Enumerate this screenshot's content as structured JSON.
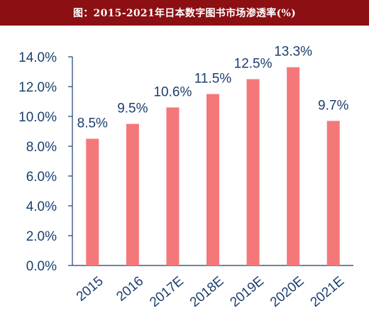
{
  "header": {
    "title": "图：2015-2021年日本数字图书市场渗透率(%)"
  },
  "colors": {
    "header_bg": "#8b0f13",
    "bar": "#f4787a",
    "text": "#1b3f6e",
    "axis": "#1b3f6e"
  },
  "chart_data": {
    "type": "bar",
    "title": "图：2015-2021年日本数字图书市场渗透率(%)",
    "categories": [
      "2015",
      "2016",
      "2017E",
      "2018E",
      "2019E",
      "2020E",
      "2021E"
    ],
    "values": [
      8.5,
      9.5,
      10.6,
      11.5,
      12.5,
      13.3,
      9.7
    ],
    "data_labels": [
      "8.5%",
      "9.5%",
      "10.6%",
      "11.5%",
      "12.5%",
      "13.3%",
      "9.7%"
    ],
    "yticks": [
      "0.0%",
      "2.0%",
      "4.0%",
      "6.0%",
      "8.0%",
      "10.0%",
      "12.0%",
      "14.0%"
    ],
    "ylim": [
      0,
      14
    ],
    "xlabel": "",
    "ylabel": "",
    "grid": false,
    "legend": "none"
  }
}
